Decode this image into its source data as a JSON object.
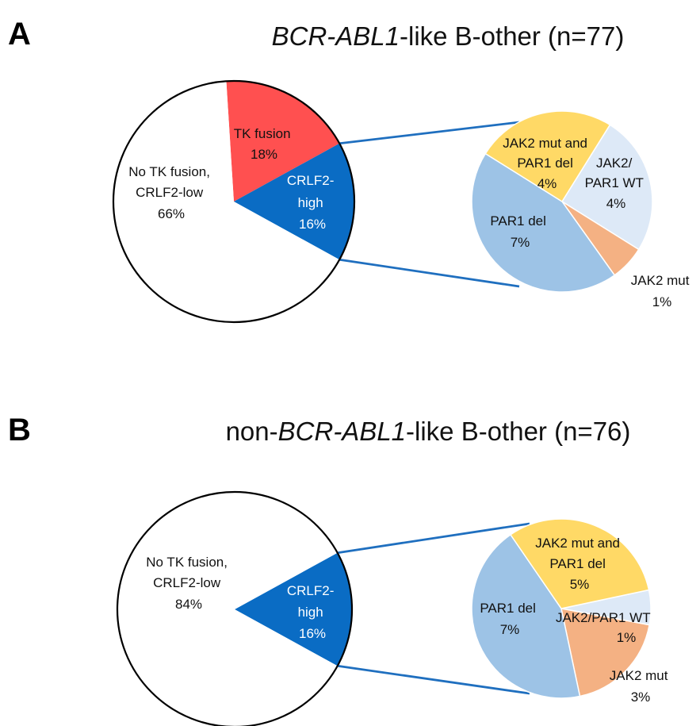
{
  "chart_data": [
    {
      "type": "pie",
      "panel_label": "A",
      "title": {
        "italic": "BCR-ABL1",
        "suffix": "-like B-other (n=77)"
      },
      "slices": [
        {
          "label": [
            "TK fusion",
            "18%"
          ],
          "value": 18,
          "color": "#ff5050",
          "text_color": "#000000"
        },
        {
          "label": [
            "CRLF2-",
            "high",
            "16%"
          ],
          "value": 16,
          "color": "#0a6cc4",
          "text_color": "#ffffff",
          "exploded_into_sub_pie": true
        },
        {
          "label": [
            "No TK fusion,",
            "CRLF2-low",
            "66%"
          ],
          "value": 66,
          "color": "#ffffff",
          "text_color": "#000000"
        }
      ],
      "sub_pie": {
        "slices": [
          {
            "label": [
              "JAK2/",
              "PAR1 WT",
              "4%"
            ],
            "value": 4,
            "color": "#dde9f7"
          },
          {
            "label": [
              "JAK2 mut",
              "1%"
            ],
            "value": 1,
            "color": "#f4b183"
          },
          {
            "label": [
              "PAR1 del",
              "7%"
            ],
            "value": 7,
            "color": "#9dc3e6"
          },
          {
            "label": [
              "JAK2 mut and",
              "PAR1 del",
              "4%"
            ],
            "value": 4,
            "color": "#ffd966"
          }
        ]
      }
    },
    {
      "type": "pie",
      "panel_label": "B",
      "title": {
        "prefix": "non-",
        "italic": "BCR-ABL1",
        "suffix": "-like B-other (n=76)"
      },
      "slices": [
        {
          "label": [
            "CRLF2-",
            "high",
            "16%"
          ],
          "value": 16,
          "color": "#0a6cc4",
          "text_color": "#ffffff",
          "exploded_into_sub_pie": true
        },
        {
          "label": [
            "No TK fusion,",
            "CRLF2-low",
            "84%"
          ],
          "value": 84,
          "color": "#ffffff",
          "text_color": "#000000"
        }
      ],
      "sub_pie": {
        "slices": [
          {
            "label": [
              "JAK2/PAR1 WT",
              "1%"
            ],
            "value": 1,
            "color": "#dde9f7"
          },
          {
            "label": [
              "JAK2 mut",
              "3%"
            ],
            "value": 3,
            "color": "#f4b183"
          },
          {
            "label": [
              "PAR1 del",
              "7%"
            ],
            "value": 7,
            "color": "#9dc3e6"
          },
          {
            "label": [
              "JAK2 mut and",
              "PAR1 del",
              "5%"
            ],
            "value": 5,
            "color": "#ffd966"
          }
        ]
      }
    }
  ]
}
